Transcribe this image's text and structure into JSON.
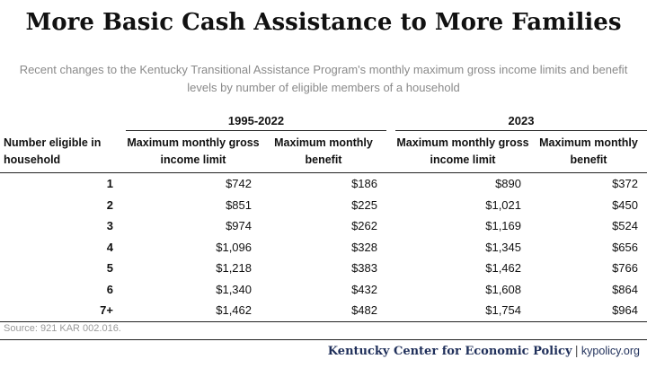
{
  "header": {
    "title": "More Basic Cash Assistance to More Families",
    "subtitle": "Recent changes to the Kentucky Transitional Assistance Program's monthly maximum gross income limits and benefit levels by number of eligible members of a household"
  },
  "table": {
    "groups": [
      "1995-2022",
      "2023"
    ],
    "row_header": "Number eligible in household",
    "columns": [
      "Maximum monthly gross income limit",
      "Maximum monthly benefit",
      "Maximum monthly gross income limit",
      "Maximum monthly benefit"
    ],
    "rows": [
      {
        "n": "1",
        "v": [
          "$742",
          "$186",
          "$890",
          "$372"
        ]
      },
      {
        "n": "2",
        "v": [
          "$851",
          "$225",
          "$1,021",
          "$450"
        ]
      },
      {
        "n": "3",
        "v": [
          "$974",
          "$262",
          "$1,169",
          "$524"
        ]
      },
      {
        "n": "4",
        "v": [
          "$1,096",
          "$328",
          "$1,345",
          "$656"
        ]
      },
      {
        "n": "5",
        "v": [
          "$1,218",
          "$383",
          "$1,462",
          "$766"
        ]
      },
      {
        "n": "6",
        "v": [
          "$1,340",
          "$432",
          "$1,608",
          "$864"
        ]
      },
      {
        "n": "7+",
        "v": [
          "$1,462",
          "$482",
          "$1,754",
          "$964"
        ]
      }
    ]
  },
  "source": "Source: 921 KAR 002.016.",
  "footer": {
    "org": "Kentucky Center for Economic Policy",
    "separator": "|",
    "url": "kypolicy.org"
  }
}
